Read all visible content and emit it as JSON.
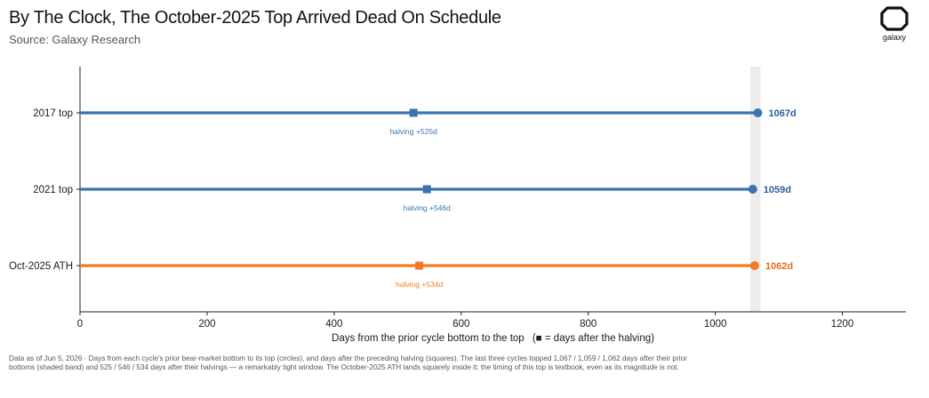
{
  "header": {
    "title": "By The Clock, The October-2025 Top Arrived Dead On Schedule",
    "subtitle": "Source: Galaxy Research",
    "logo_text": "galaxy"
  },
  "footnote": "Data as of Jun 5, 2026 · Days from each cycle's prior bear-market bottom to its top (circles), and days after the preceding halving (squares). The last three cycles topped 1,067 / 1,059 / 1,062 days after their prior bottoms (shaded band) and 525 / 546 / 534 days after their halvings — a remarkably tight window. The October-2025 ATH lands squarely inside it: the timing of this top is textbook, even as its magnitude is not.",
  "chart_data": {
    "type": "dot-range",
    "xlabel": "Days from the prior cycle bottom to the top",
    "xlabel_suffix": "(■ = days after the halving)",
    "xlim": [
      0,
      1300
    ],
    "xticks": [
      0,
      200,
      400,
      600,
      800,
      1000,
      1200
    ],
    "shaded_band": [
      1059,
      1067
    ],
    "series": [
      {
        "label": "2017 top",
        "bottom_to_top_days": 1067,
        "halving_days": 525,
        "end_label": "1067d",
        "halving_label": "halving +525d",
        "color": "#3a73b0",
        "end_label_color": "#2a5e9c"
      },
      {
        "label": "2021 top",
        "bottom_to_top_days": 1059,
        "halving_days": 546,
        "end_label": "1059d",
        "halving_label": "halving +546d",
        "color": "#3a73b0",
        "end_label_color": "#2a5e9c"
      },
      {
        "label": "Oct-2025 ATH",
        "bottom_to_top_days": 1062,
        "halving_days": 534,
        "end_label": "1062d",
        "halving_label": "halving +534d",
        "color": "#f07b22",
        "end_label_color": "#e26d16"
      }
    ]
  }
}
